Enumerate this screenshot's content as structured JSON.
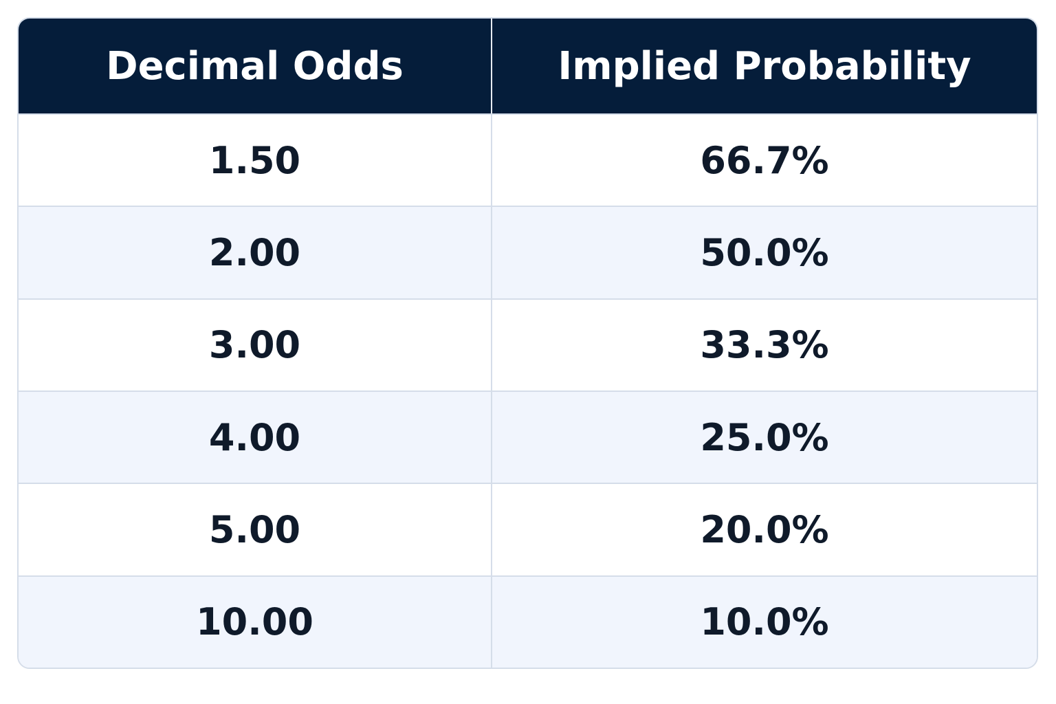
{
  "table": {
    "header": [
      "Decimal Odds",
      "Implied Probability"
    ],
    "rows": [
      [
        "1.50",
        "66.7%"
      ],
      [
        "2.00",
        "50.0%"
      ],
      [
        "3.00",
        "33.3%"
      ],
      [
        "4.00",
        "25.0%"
      ],
      [
        "5.00",
        "20.0%"
      ],
      [
        "10.00",
        "10.0%"
      ]
    ]
  }
}
